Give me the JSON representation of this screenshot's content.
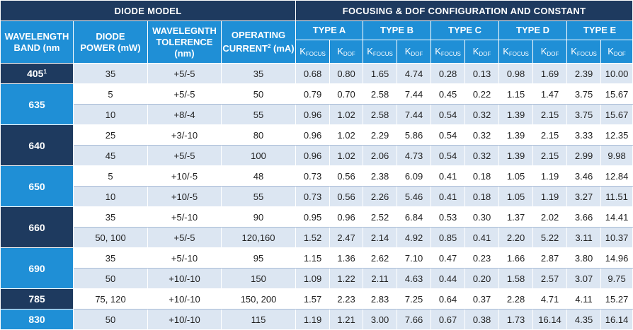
{
  "header": {
    "diode_model": "DIODE MODEL",
    "focusing_config": "FOCUSING & DOF CONFIGURATION AND CONSTANT",
    "wavelength_band_line1": "WAVELENGTH",
    "wavelength_band_line2": "BAND (nm",
    "diode_power_line1": "DIODE",
    "diode_power_line2": "POWER (mW)",
    "tolerance_line1": "WAVELEGNTH",
    "tolerance_line2": "TOLERENCE (nm)",
    "current_line1": "OPERATING",
    "current_line2a": "CURRENT",
    "current_sup": "2",
    "current_line2b": " (mA)",
    "types": [
      "TYPE A",
      "TYPE B",
      "TYPE C",
      "TYPE D",
      "TYPE E"
    ],
    "k_letter": "K",
    "k_focus_sub": "FOCUS",
    "k_dof_sub": "DOF"
  },
  "bands": [
    {
      "label": "405",
      "sup": "1",
      "style": "dark",
      "rows": [
        {
          "power": "35",
          "tolerance": "+5/-5",
          "current": "35",
          "k": [
            "0.68",
            "0.80",
            "1.65",
            "4.74",
            "0.28",
            "0.13",
            "0.98",
            "1.69",
            "2.39",
            "10.00"
          ]
        }
      ]
    },
    {
      "label": "635",
      "sup": "",
      "style": "blue",
      "rows": [
        {
          "power": "5",
          "tolerance": "+5/-5",
          "current": "50",
          "k": [
            "0.79",
            "0.70",
            "2.58",
            "7.44",
            "0.45",
            "0.22",
            "1.15",
            "1.47",
            "3.75",
            "15.67"
          ]
        },
        {
          "power": "10",
          "tolerance": "+8/-4",
          "current": "55",
          "k": [
            "0.96",
            "1.02",
            "2.58",
            "7.44",
            "0.54",
            "0.32",
            "1.39",
            "2.15",
            "3.75",
            "15.67"
          ]
        }
      ]
    },
    {
      "label": "640",
      "sup": "",
      "style": "dark",
      "rows": [
        {
          "power": "25",
          "tolerance": "+3/-10",
          "current": "80",
          "k": [
            "0.96",
            "1.02",
            "2.29",
            "5.86",
            "0.54",
            "0.32",
            "1.39",
            "2.15",
            "3.33",
            "12.35"
          ]
        },
        {
          "power": "45",
          "tolerance": "+5/-5",
          "current": "100",
          "k": [
            "0.96",
            "1.02",
            "2.06",
            "4.73",
            "0.54",
            "0.32",
            "1.39",
            "2.15",
            "2.99",
            "9.98"
          ]
        }
      ]
    },
    {
      "label": "650",
      "sup": "",
      "style": "blue",
      "rows": [
        {
          "power": "5",
          "tolerance": "+10/-5",
          "current": "48",
          "k": [
            "0.73",
            "0.56",
            "2.38",
            "6.09",
            "0.41",
            "0.18",
            "1.05",
            "1.19",
            "3.46",
            "12.84"
          ]
        },
        {
          "power": "10",
          "tolerance": "+10/-5",
          "current": "55",
          "k": [
            "0.73",
            "0.56",
            "2.26",
            "5.46",
            "0.41",
            "0.18",
            "1.05",
            "1.19",
            "3.27",
            "11.51"
          ]
        }
      ]
    },
    {
      "label": "660",
      "sup": "",
      "style": "dark",
      "rows": [
        {
          "power": "35",
          "tolerance": "+5/-10",
          "current": "90",
          "k": [
            "0.95",
            "0.96",
            "2.52",
            "6.84",
            "0.53",
            "0.30",
            "1.37",
            "2.02",
            "3.66",
            "14.41"
          ]
        },
        {
          "power": "50, 100",
          "tolerance": "+5/-5",
          "current": "120,160",
          "k": [
            "1.52",
            "2.47",
            "2.14",
            "4.92",
            "0.85",
            "0.41",
            "2.20",
            "5.22",
            "3.11",
            "10.37"
          ]
        }
      ]
    },
    {
      "label": "690",
      "sup": "",
      "style": "blue",
      "rows": [
        {
          "power": "35",
          "tolerance": "+5/-10",
          "current": "95",
          "k": [
            "1.15",
            "1.36",
            "2.62",
            "7.10",
            "0.47",
            "0.23",
            "1.66",
            "2.87",
            "3.80",
            "14.96"
          ]
        },
        {
          "power": "50",
          "tolerance": "+10/-10",
          "current": "150",
          "k": [
            "1.09",
            "1.22",
            "2.11",
            "4.63",
            "0.44",
            "0.20",
            "1.58",
            "2.57",
            "3.07",
            "9.75"
          ]
        }
      ]
    },
    {
      "label": "785",
      "sup": "",
      "style": "dark",
      "rows": [
        {
          "power": "75, 120",
          "tolerance": "+10/-10",
          "current": "150, 200",
          "k": [
            "1.57",
            "2.23",
            "2.83",
            "7.25",
            "0.64",
            "0.37",
            "2.28",
            "4.71",
            "4.11",
            "15.27"
          ]
        }
      ]
    },
    {
      "label": "830",
      "sup": "",
      "style": "blue",
      "rows": [
        {
          "power": "50",
          "tolerance": "+10/-10",
          "current": "115",
          "k": [
            "1.19",
            "1.21",
            "3.00",
            "7.66",
            "0.67",
            "0.38",
            "1.73",
            "16.14",
            "4.35",
            "16.14"
          ]
        }
      ]
    }
  ],
  "colors": {
    "dark_navy": "#1e3a5f",
    "accent_blue": "#1f8fd6",
    "row_light": "#dce6f2",
    "row_white": "#ffffff"
  }
}
